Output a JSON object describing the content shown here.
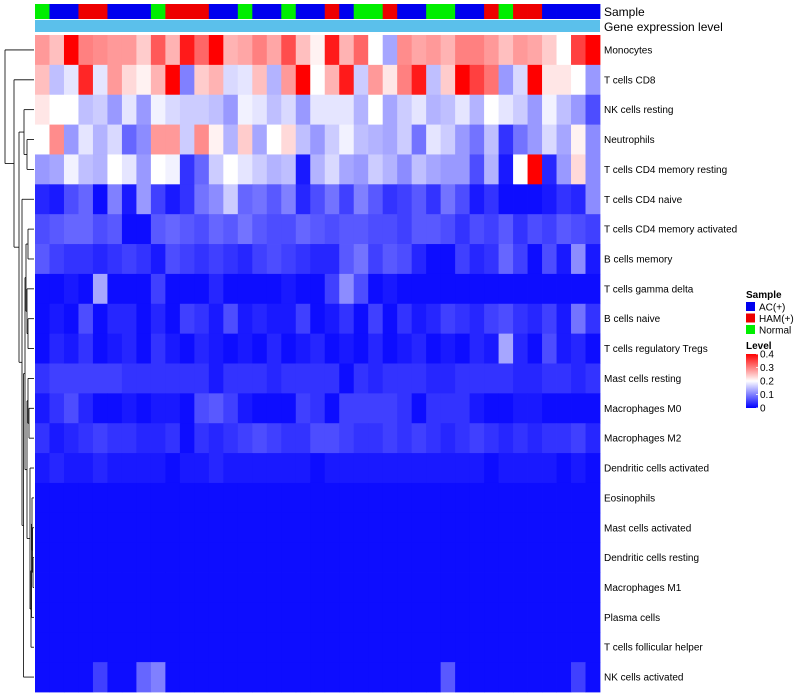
{
  "chart_data": {
    "type": "heatmap",
    "annotation_tracks": [
      "Sample",
      "Gene expression level"
    ],
    "legend": {
      "sample_title": "Sample",
      "sample_entries": [
        {
          "name": "AC(+)",
          "color": "#0000ee"
        },
        {
          "name": "HAM(+)",
          "color": "#ee0000"
        },
        {
          "name": "Normal",
          "color": "#00ee00"
        }
      ],
      "level_title": "Level",
      "level_ticks": [
        "0.4",
        "0.3",
        "0.2",
        "0.1",
        "0"
      ],
      "level_range": [
        0,
        0.4
      ]
    },
    "colors": {
      "low": "#0000ff",
      "mid": "#ffffff",
      "high": "#ff0000",
      "expression_track": "#5bc0eb",
      "AC": "#0000ee",
      "HAM": "#ee0000",
      "Normal": "#00ee00",
      "dendrogram": "#000000"
    },
    "samples": [
      "Normal",
      "AC(+)",
      "AC(+)",
      "HAM(+)",
      "HAM(+)",
      "AC(+)",
      "AC(+)",
      "AC(+)",
      "Normal",
      "HAM(+)",
      "HAM(+)",
      "HAM(+)",
      "AC(+)",
      "AC(+)",
      "Normal",
      "AC(+)",
      "AC(+)",
      "Normal",
      "AC(+)",
      "AC(+)",
      "HAM(+)",
      "AC(+)",
      "Normal",
      "Normal",
      "HAM(+)",
      "AC(+)",
      "AC(+)",
      "Normal",
      "Normal",
      "AC(+)",
      "AC(+)",
      "HAM(+)",
      "Normal",
      "HAM(+)",
      "HAM(+)",
      "AC(+)",
      "AC(+)",
      "AC(+)",
      "AC(+)"
    ],
    "rows": [
      {
        "name": "Monocytes",
        "values": [
          0.28,
          0.25,
          0.4,
          0.3,
          0.29,
          0.28,
          0.28,
          0.24,
          0.33,
          0.26,
          0.38,
          0.32,
          0.4,
          0.26,
          0.27,
          0.3,
          0.27,
          0.34,
          0.25,
          0.21,
          0.38,
          0.26,
          0.32,
          0.2,
          0.13,
          0.29,
          0.27,
          0.28,
          0.26,
          0.3,
          0.3,
          0.28,
          0.25,
          0.28,
          0.27,
          0.24,
          0.2,
          0.35,
          0.42
        ]
      },
      {
        "name": "T cells CD8",
        "values": [
          0.25,
          0.15,
          0.18,
          0.37,
          0.18,
          0.28,
          0.23,
          0.21,
          0.26,
          0.4,
          0.1,
          0.24,
          0.26,
          0.17,
          0.18,
          0.25,
          0.14,
          0.28,
          0.4,
          0.2,
          0.26,
          0.38,
          0.16,
          0.28,
          0.22,
          0.3,
          0.38,
          0.15,
          0.24,
          0.4,
          0.35,
          0.31,
          0.12,
          0.17,
          0.42,
          0.22,
          0.22,
          0.2,
          0.12
        ]
      },
      {
        "name": "NK cells resting",
        "values": [
          0.22,
          0.2,
          0.2,
          0.15,
          0.16,
          0.12,
          0.18,
          0.12,
          0.19,
          0.17,
          0.16,
          0.16,
          0.15,
          0.12,
          0.19,
          0.18,
          0.15,
          0.17,
          0.12,
          0.18,
          0.18,
          0.18,
          0.14,
          0.2,
          0.13,
          0.16,
          0.18,
          0.14,
          0.15,
          0.18,
          0.14,
          0.2,
          0.18,
          0.16,
          0.12,
          0.19,
          0.15,
          0.12,
          0.06
        ]
      },
      {
        "name": "Neutrophils",
        "values": [
          0.2,
          0.29,
          0.12,
          0.18,
          0.14,
          0.17,
          0.08,
          0.11,
          0.28,
          0.28,
          0.16,
          0.29,
          0.21,
          0.14,
          0.24,
          0.13,
          0.2,
          0.23,
          0.15,
          0.12,
          0.16,
          0.19,
          0.15,
          0.14,
          0.13,
          0.16,
          0.09,
          0.18,
          0.16,
          0.12,
          0.09,
          0.15,
          0.04,
          0.09,
          0.12,
          0.17,
          0.13,
          0.21,
          0.11
        ]
      },
      {
        "name": "T cells CD4 memory resting",
        "values": [
          0.12,
          0.13,
          0.19,
          0.15,
          0.14,
          0.2,
          0.18,
          0.12,
          0.2,
          0.19,
          0.04,
          0.08,
          0.16,
          0.2,
          0.18,
          0.16,
          0.14,
          0.15,
          0.02,
          0.14,
          0.17,
          0.13,
          0.12,
          0.16,
          0.14,
          0.11,
          0.15,
          0.13,
          0.12,
          0.12,
          0.06,
          0.14,
          0.02,
          0.2,
          0.41,
          0.03,
          0.12,
          0.23,
          0.11
        ]
      },
      {
        "name": "T cells CD4 naive",
        "values": [
          0.03,
          0.02,
          0.06,
          0.08,
          0.01,
          0.1,
          0.02,
          0.12,
          0.05,
          0.02,
          0.04,
          0.09,
          0.11,
          0.16,
          0.08,
          0.09,
          0.07,
          0.1,
          0.03,
          0.06,
          0.09,
          0.05,
          0.1,
          0.07,
          0.04,
          0.05,
          0.07,
          0.04,
          0.09,
          0.06,
          0.02,
          0.04,
          0.01,
          0.01,
          0.01,
          0.02,
          0.04,
          0.03,
          0.11
        ]
      },
      {
        "name": "T cells CD4 memory activated",
        "values": [
          0.06,
          0.07,
          0.08,
          0.08,
          0.06,
          0.07,
          0.01,
          0.01,
          0.07,
          0.08,
          0.07,
          0.06,
          0.08,
          0.07,
          0.09,
          0.07,
          0.06,
          0.06,
          0.08,
          0.07,
          0.06,
          0.07,
          0.07,
          0.06,
          0.06,
          0.05,
          0.07,
          0.07,
          0.06,
          0.04,
          0.06,
          0.05,
          0.07,
          0.04,
          0.06,
          0.05,
          0.07,
          0.06,
          0.05
        ]
      },
      {
        "name": "B cells memory",
        "values": [
          0.07,
          0.05,
          0.04,
          0.04,
          0.03,
          0.04,
          0.05,
          0.04,
          0.02,
          0.06,
          0.05,
          0.04,
          0.05,
          0.04,
          0.03,
          0.05,
          0.06,
          0.05,
          0.04,
          0.03,
          0.03,
          0.07,
          0.09,
          0.05,
          0.07,
          0.06,
          0.03,
          0.01,
          0.01,
          0.05,
          0.03,
          0.04,
          0.08,
          0.05,
          0.01,
          0.06,
          0.02,
          0.11,
          0.02
        ]
      },
      {
        "name": "T cells gamma delta",
        "values": [
          0.01,
          0.01,
          0.02,
          0.01,
          0.13,
          0.01,
          0.01,
          0.01,
          0.05,
          0.01,
          0.01,
          0.01,
          0.03,
          0.01,
          0.01,
          0.01,
          0.01,
          0.02,
          0.01,
          0.01,
          0.05,
          0.11,
          0.06,
          0.01,
          0.02,
          0.01,
          0.01,
          0.01,
          0.01,
          0.01,
          0.01,
          0.01,
          0.01,
          0.01,
          0.01,
          0.01,
          0.01,
          0.01,
          0.01
        ]
      },
      {
        "name": "B cells naive",
        "values": [
          0.01,
          0.02,
          0.01,
          0.06,
          0.01,
          0.03,
          0.03,
          0.01,
          0.03,
          0.01,
          0.05,
          0.04,
          0.02,
          0.06,
          0.02,
          0.03,
          0.02,
          0.02,
          0.05,
          0.01,
          0.02,
          0.04,
          0.01,
          0.05,
          0.01,
          0.04,
          0.02,
          0.03,
          0.05,
          0.04,
          0.03,
          0.05,
          0.06,
          0.04,
          0.03,
          0.05,
          0.02,
          0.09,
          0.04
        ]
      },
      {
        "name": "T cells regulatory  Tregs",
        "values": [
          0.01,
          0.03,
          0.02,
          0.04,
          0.01,
          0.02,
          0.03,
          0.01,
          0.04,
          0.02,
          0.01,
          0.03,
          0.02,
          0.01,
          0.02,
          0.01,
          0.03,
          0.01,
          0.02,
          0.03,
          0.01,
          0.02,
          0.01,
          0.03,
          0.01,
          0.02,
          0.03,
          0.01,
          0.02,
          0.01,
          0.03,
          0.02,
          0.13,
          0.03,
          0.01,
          0.06,
          0.02,
          0.03,
          0.01
        ]
      },
      {
        "name": "Mast cells resting",
        "values": [
          0.04,
          0.05,
          0.05,
          0.05,
          0.05,
          0.05,
          0.04,
          0.04,
          0.04,
          0.04,
          0.04,
          0.04,
          0.02,
          0.04,
          0.04,
          0.04,
          0.03,
          0.04,
          0.04,
          0.04,
          0.04,
          0.01,
          0.04,
          0.03,
          0.04,
          0.04,
          0.04,
          0.03,
          0.03,
          0.04,
          0.04,
          0.04,
          0.04,
          0.03,
          0.03,
          0.04,
          0.04,
          0.03,
          0.04
        ]
      },
      {
        "name": "Macrophages M0",
        "values": [
          0.02,
          0.04,
          0.06,
          0.03,
          0.01,
          0.01,
          0.02,
          0.01,
          0.02,
          0.02,
          0.01,
          0.06,
          0.07,
          0.05,
          0.02,
          0.01,
          0.01,
          0.01,
          0.05,
          0.04,
          0.01,
          0.05,
          0.05,
          0.05,
          0.05,
          0.04,
          0.01,
          0.04,
          0.04,
          0.04,
          0.02,
          0.01,
          0.01,
          0.02,
          0.02,
          0.01,
          0.01,
          0.01,
          0.01
        ]
      },
      {
        "name": "Macrophages M2",
        "values": [
          0.04,
          0.02,
          0.03,
          0.04,
          0.05,
          0.04,
          0.04,
          0.03,
          0.03,
          0.04,
          0.01,
          0.04,
          0.03,
          0.04,
          0.05,
          0.06,
          0.05,
          0.04,
          0.04,
          0.06,
          0.06,
          0.05,
          0.04,
          0.04,
          0.05,
          0.04,
          0.05,
          0.04,
          0.03,
          0.04,
          0.05,
          0.04,
          0.03,
          0.04,
          0.03,
          0.04,
          0.04,
          0.05,
          0.03
        ]
      },
      {
        "name": "Dendritic cells activated",
        "values": [
          0.02,
          0.03,
          0.02,
          0.02,
          0.03,
          0.02,
          0.02,
          0.02,
          0.02,
          0.01,
          0.02,
          0.02,
          0.03,
          0.02,
          0.02,
          0.02,
          0.02,
          0.02,
          0.02,
          0.01,
          0.02,
          0.02,
          0.02,
          0.02,
          0.02,
          0.02,
          0.02,
          0.02,
          0.02,
          0.02,
          0.02,
          0.01,
          0.02,
          0.02,
          0.02,
          0.02,
          0.01,
          0.02,
          0.01
        ]
      },
      {
        "name": "Eosinophils",
        "values": [
          0.01,
          0.01,
          0.01,
          0.01,
          0.01,
          0.01,
          0.01,
          0.01,
          0.01,
          0.01,
          0.01,
          0.01,
          0.01,
          0.01,
          0.01,
          0.01,
          0.01,
          0.01,
          0.01,
          0.01,
          0.01,
          0.01,
          0.01,
          0.01,
          0.01,
          0.01,
          0.01,
          0.01,
          0.01,
          0.01,
          0.01,
          0.01,
          0.01,
          0.01,
          0.01,
          0.01,
          0.01,
          0.01,
          0.01
        ]
      },
      {
        "name": "Mast cells activated",
        "values": [
          0.01,
          0.01,
          0.01,
          0.01,
          0.01,
          0.01,
          0.01,
          0.01,
          0.01,
          0.01,
          0.01,
          0.01,
          0.01,
          0.01,
          0.01,
          0.01,
          0.01,
          0.01,
          0.01,
          0.01,
          0.01,
          0.01,
          0.01,
          0.01,
          0.01,
          0.01,
          0.01,
          0.01,
          0.01,
          0.01,
          0.01,
          0.01,
          0.01,
          0.01,
          0.01,
          0.01,
          0.01,
          0.01,
          0.01
        ]
      },
      {
        "name": "Dendritic cells resting",
        "values": [
          0.01,
          0.01,
          0.01,
          0.01,
          0.01,
          0.01,
          0.01,
          0.01,
          0.01,
          0.01,
          0.01,
          0.01,
          0.01,
          0.01,
          0.01,
          0.01,
          0.01,
          0.01,
          0.01,
          0.01,
          0.01,
          0.01,
          0.01,
          0.01,
          0.01,
          0.01,
          0.01,
          0.01,
          0.01,
          0.01,
          0.01,
          0.01,
          0.01,
          0.01,
          0.01,
          0.01,
          0.01,
          0.01,
          0.01
        ]
      },
      {
        "name": "Macrophages M1",
        "values": [
          0.01,
          0.01,
          0.01,
          0.01,
          0.01,
          0.01,
          0.01,
          0.01,
          0.01,
          0.01,
          0.01,
          0.01,
          0.01,
          0.01,
          0.01,
          0.01,
          0.01,
          0.01,
          0.01,
          0.01,
          0.01,
          0.01,
          0.01,
          0.01,
          0.01,
          0.01,
          0.01,
          0.01,
          0.01,
          0.01,
          0.01,
          0.01,
          0.01,
          0.01,
          0.01,
          0.01,
          0.01,
          0.01,
          0.01
        ]
      },
      {
        "name": "Plasma cells",
        "values": [
          0.01,
          0.01,
          0.01,
          0.01,
          0.01,
          0.01,
          0.01,
          0.01,
          0.01,
          0.01,
          0.01,
          0.01,
          0.01,
          0.01,
          0.01,
          0.01,
          0.01,
          0.01,
          0.01,
          0.01,
          0.01,
          0.01,
          0.01,
          0.01,
          0.01,
          0.01,
          0.01,
          0.01,
          0.01,
          0.01,
          0.01,
          0.01,
          0.01,
          0.01,
          0.01,
          0.01,
          0.01,
          0.01,
          0.01
        ]
      },
      {
        "name": "T cells follicular helper",
        "values": [
          0.01,
          0.01,
          0.01,
          0.01,
          0.01,
          0.01,
          0.01,
          0.01,
          0.01,
          0.01,
          0.01,
          0.01,
          0.01,
          0.01,
          0.01,
          0.01,
          0.01,
          0.01,
          0.01,
          0.01,
          0.01,
          0.01,
          0.01,
          0.01,
          0.01,
          0.01,
          0.01,
          0.01,
          0.01,
          0.01,
          0.01,
          0.01,
          0.01,
          0.01,
          0.01,
          0.01,
          0.01,
          0.01,
          0.01
        ]
      },
      {
        "name": "NK cells activated",
        "values": [
          0.01,
          0.01,
          0.01,
          0.01,
          0.05,
          0.01,
          0.01,
          0.08,
          0.1,
          0.01,
          0.01,
          0.01,
          0.01,
          0.01,
          0.01,
          0.01,
          0.01,
          0.01,
          0.01,
          0.01,
          0.01,
          0.01,
          0.01,
          0.01,
          0.01,
          0.01,
          0.01,
          0.01,
          0.07,
          0.01,
          0.01,
          0.01,
          0.01,
          0.01,
          0.01,
          0.01,
          0.01,
          0.05,
          0.01
        ]
      }
    ]
  }
}
